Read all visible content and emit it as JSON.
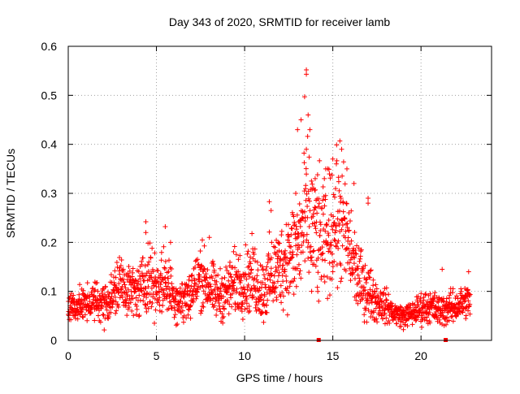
{
  "chart_data": {
    "type": "scatter",
    "title": "Day 343 of 2020, SRMTID for receiver lamb",
    "xlabel": "GPS time / hours",
    "ylabel": "SRMTID / TECUs",
    "xlim": [
      0,
      24
    ],
    "ylim": [
      0,
      0.6
    ],
    "x_ticks": [
      0,
      5,
      10,
      15,
      20
    ],
    "y_ticks": [
      0,
      0.1,
      0.2,
      0.3,
      0.4,
      0.5,
      0.6
    ],
    "x_tick_labels": [
      "0",
      "5",
      "10",
      "15",
      "20"
    ],
    "y_tick_labels": [
      "0",
      "0.1",
      "0.2",
      "0.3",
      "0.4",
      "0.5",
      "0.6"
    ],
    "grid": true,
    "marker": "+",
    "series_color": "#ff0000",
    "envelope": {
      "hours": [
        0,
        0.5,
        1,
        1.5,
        2,
        2.5,
        3,
        3.5,
        4,
        4.5,
        5,
        5.5,
        6,
        6.5,
        7,
        7.5,
        8,
        8.5,
        9,
        9.5,
        10,
        10.5,
        11,
        11.5,
        12,
        12.5,
        13,
        13.5,
        14,
        14.5,
        15,
        15.5,
        16,
        16.5,
        17,
        17.5,
        18,
        18.5,
        19,
        19.5,
        20,
        20.5,
        21,
        21.5,
        22,
        22.5,
        22.8
      ],
      "center": [
        0.07,
        0.07,
        0.075,
        0.08,
        0.075,
        0.09,
        0.12,
        0.1,
        0.1,
        0.13,
        0.11,
        0.12,
        0.09,
        0.08,
        0.1,
        0.13,
        0.11,
        0.09,
        0.1,
        0.12,
        0.12,
        0.13,
        0.1,
        0.13,
        0.15,
        0.17,
        0.19,
        0.25,
        0.22,
        0.2,
        0.24,
        0.24,
        0.18,
        0.12,
        0.1,
        0.08,
        0.07,
        0.055,
        0.05,
        0.055,
        0.065,
        0.07,
        0.06,
        0.065,
        0.07,
        0.08,
        0.08
      ],
      "spread": [
        0.02,
        0.02,
        0.02,
        0.025,
        0.025,
        0.03,
        0.04,
        0.03,
        0.03,
        0.045,
        0.035,
        0.04,
        0.03,
        0.03,
        0.035,
        0.04,
        0.035,
        0.03,
        0.035,
        0.04,
        0.04,
        0.045,
        0.04,
        0.05,
        0.05,
        0.06,
        0.07,
        0.09,
        0.08,
        0.07,
        0.08,
        0.08,
        0.06,
        0.04,
        0.035,
        0.025,
        0.02,
        0.015,
        0.012,
        0.015,
        0.02,
        0.02,
        0.02,
        0.02,
        0.02,
        0.02,
        0.02
      ]
    },
    "highlights": [
      {
        "x": 4.4,
        "y": 0.242
      },
      {
        "x": 4.4,
        "y": 0.22
      },
      {
        "x": 5.5,
        "y": 0.232
      },
      {
        "x": 5.8,
        "y": 0.2
      },
      {
        "x": 7.6,
        "y": 0.205
      },
      {
        "x": 8.0,
        "y": 0.21
      },
      {
        "x": 11.4,
        "y": 0.283
      },
      {
        "x": 11.5,
        "y": 0.265
      },
      {
        "x": 13.0,
        "y": 0.43
      },
      {
        "x": 13.2,
        "y": 0.45
      },
      {
        "x": 13.5,
        "y": 0.552
      },
      {
        "x": 13.5,
        "y": 0.543
      },
      {
        "x": 13.4,
        "y": 0.497
      },
      {
        "x": 13.6,
        "y": 0.46
      },
      {
        "x": 13.7,
        "y": 0.43
      },
      {
        "x": 13.5,
        "y": 0.39
      },
      {
        "x": 14.0,
        "y": 0.33
      },
      {
        "x": 14.6,
        "y": 0.35
      },
      {
        "x": 15.0,
        "y": 0.37
      },
      {
        "x": 15.4,
        "y": 0.407
      },
      {
        "x": 15.5,
        "y": 0.39
      },
      {
        "x": 15.2,
        "y": 0.36
      },
      {
        "x": 15.8,
        "y": 0.35
      },
      {
        "x": 16.2,
        "y": 0.32
      },
      {
        "x": 17.0,
        "y": 0.29
      },
      {
        "x": 17.0,
        "y": 0.28
      },
      {
        "x": 12.9,
        "y": 0.3
      },
      {
        "x": 14.2,
        "y": 0.08
      },
      {
        "x": 13.8,
        "y": 0.1
      },
      {
        "x": 21.2,
        "y": 0.145
      },
      {
        "x": 22.7,
        "y": 0.14
      },
      {
        "x": 19.0,
        "y": 0.022
      }
    ],
    "axis_markers": [
      {
        "x": 14.2,
        "y": 0
      },
      {
        "x": 21.4,
        "y": 0
      }
    ]
  }
}
